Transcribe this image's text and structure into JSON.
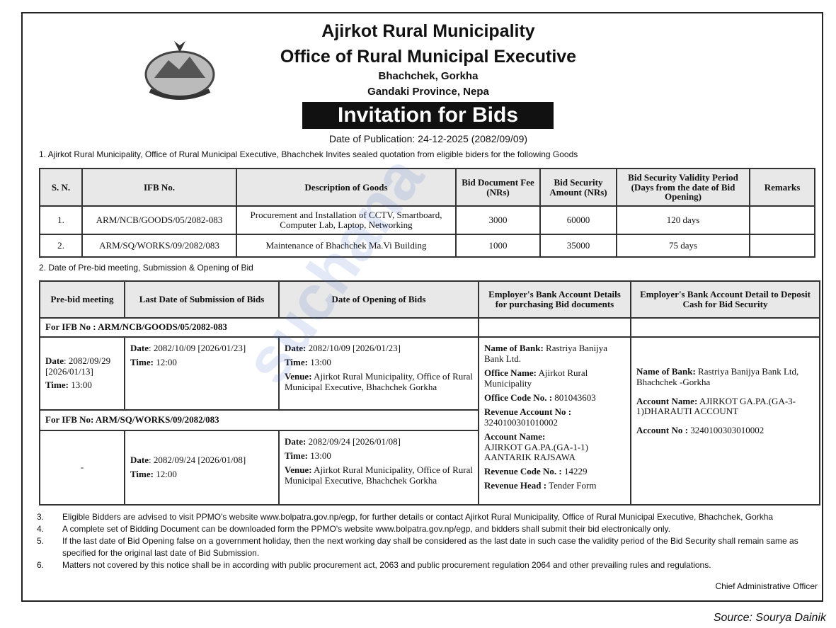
{
  "header": {
    "org": "Ajirkot Rural Municipality",
    "office": "Office of Rural Municipal Executive",
    "address1": "Bhachchek, Gorkha",
    "address2": "Gandaki Province, Nepa",
    "title": "Invitation for Bids",
    "publication": "Date of Publication: 24-12-2025 (2082/09/09)"
  },
  "watermark": "suchana",
  "section1": "1.  Ajirkot Rural Municipality, Office of Rural Municipal Executive, Bhachchek Invites sealed quotation from eligible biders for the following Goods",
  "table1": {
    "headers": [
      "S. N.",
      "IFB No.",
      "Description of Goods",
      "Bid Document Fee (NRs)",
      "Bid Security Amount (NRs)",
      "Bid Security Validity Period (Days from the date of Bid Opening)",
      "Remarks"
    ],
    "rows": [
      [
        "1.",
        "ARM/NCB/GOODS/05/2082-083",
        "Procurement and Installation of CCTV, Smartboard, Computer Lab, Laptop, Networking",
        "3000",
        "60000",
        "120 days",
        ""
      ],
      [
        "2.",
        "ARM/SQ/WORKS/09/2082/083",
        "Maintenance of Bhachchek Ma.Vi Building",
        "1000",
        "35000",
        "75 days",
        ""
      ]
    ]
  },
  "section2": "2.  Date of Pre-bid meeting, Submission & Opening of Bid",
  "table2": {
    "headers": [
      "Pre-bid meeting",
      "Last Date of  Submission of Bids",
      "Date of Opening of Bids",
      "Employer's Bank Account Details for purchasing Bid documents",
      "Employer's Bank Account Detail to Deposit Cash for Bid Security"
    ],
    "groups": [
      {
        "label": "For IFB No : ARM/NCB/GOODS/05/2082-083",
        "prebid_date": "2082/09/29 [2026/01/13]",
        "prebid_time": "13:00",
        "submit_date": "2082/10/09 [2026/01/23]",
        "submit_time": "12:00",
        "open_date": "2082/10/09 [2026/01/23]",
        "open_time": "13:00",
        "venue": "Ajirkot Rural Municipality, Office of Rural Municipal Executive, Bhachchek Gorkha"
      },
      {
        "label": "For IFB No: ARM/SQ/WORKS/09/2082/083",
        "prebid": "-",
        "submit_date": "2082/09/24 [2026/01/08]",
        "submit_time": "12:00",
        "open_date": "2082/09/24 [2026/01/08]",
        "open_time": "13:00",
        "venue": "Ajirkot Rural Municipality, Office of Rural Municipal Executive, Bhachchek Gorkha"
      }
    ],
    "labels": {
      "date": "Date",
      "date_colon": "Date:",
      "time": "Time:",
      "venue": "Venue:"
    },
    "bank_docs": [
      {
        "k": "Name of Bank:",
        "v": "Rastriya Banijya Bank Ltd."
      },
      {
        "k": "Office Name:",
        "v": "Ajirkot Rural Municipality"
      },
      {
        "k": "Office Code No. :",
        "v": "801043603"
      },
      {
        "k": "Revenue Account No :",
        "v": "3240100301010002"
      },
      {
        "k": "Account Name:",
        "v": "AJIRKOT GA.PA.(GA-1-1) AANTARIK RAJSAWA"
      },
      {
        "k": "Revenue Code No. :",
        "v": "14229"
      },
      {
        "k": "Revenue Head :",
        "v": "Tender Form"
      }
    ],
    "bank_security": [
      {
        "k": "Name of Bank:",
        "v": "Rastriya Banijya Bank Ltd, Bhachchek -Gorkha"
      },
      {
        "k": "Account Name:",
        "v": "AJIRKOT GA.PA.(GA-3-1)DHARAUTI ACCOUNT"
      },
      {
        "k": "Account No :",
        "v": "3240100303010002"
      }
    ]
  },
  "notes": [
    {
      "n": "3.",
      "t": "Eligible Bidders are advised to visit PPMO's website www.bolpatra.gov.np/egp, for further details or contact Ajirkot Rural Municipality, Office of Rural Municipal Executive, Bhachchek, Gorkha"
    },
    {
      "n": "4.",
      "t": "A complete set of Bidding Document can be downloaded form the PPMO's website www.bolpatra.gov.np/egp, and bidders shall submit their bid electronically only."
    },
    {
      "n": "5.",
      "t": "If the last date of Bid Opening false on a government holiday, then the next working day shall be considered as the last date in such case the validity period of the  Bid Security shall remain same as specified for the original last date of Bid Submission."
    },
    {
      "n": "6.",
      "t": "Matters not covered by this notice shall be in according with public procurement act, 2063 and public procurement regulation 2064 and other prevailing rules and regulations."
    }
  ],
  "signatory": "Chief Administrative Officer",
  "source": "Source: Sourya Dainik"
}
